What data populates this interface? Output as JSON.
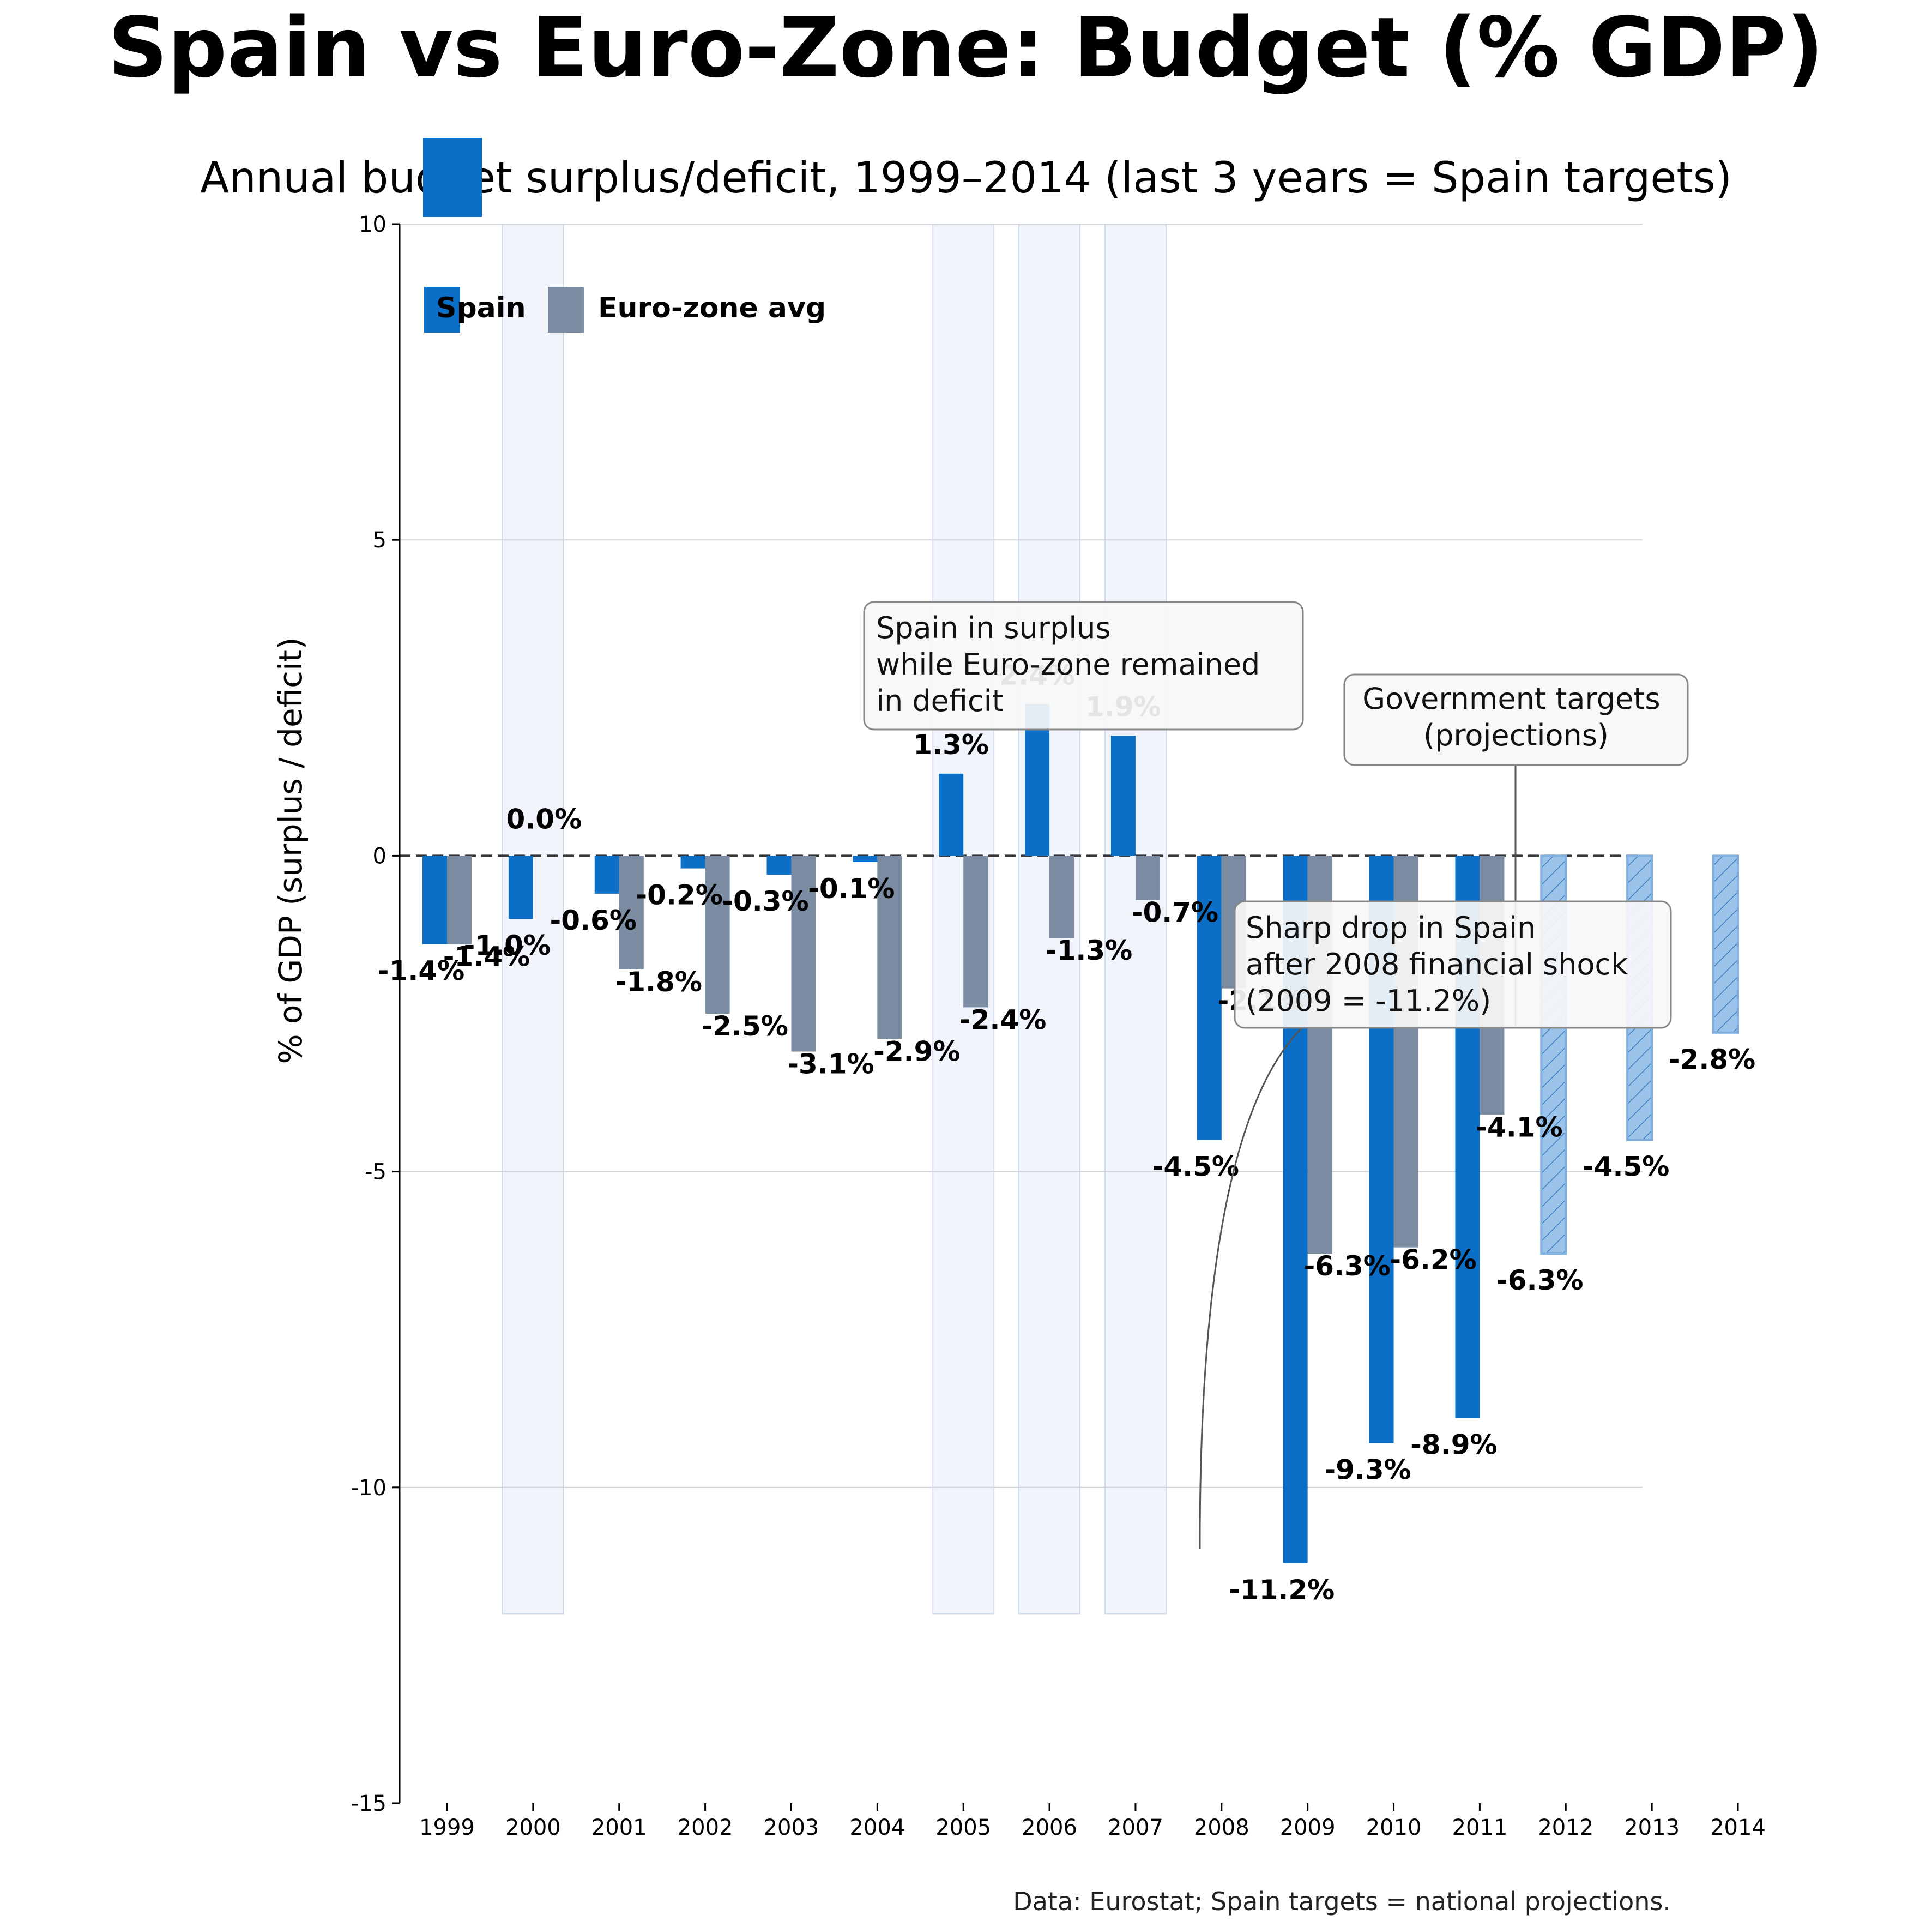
{
  "chart_data": {
    "type": "bar",
    "title": "Spain vs Euro-Zone: Budget (% GDP)",
    "subtitle": "Annual budget surplus/deficit, 1999–2014 (last 3 years = Spain targets)",
    "ylabel": "% of GDP (surplus / deficit)",
    "xlabel": "",
    "ylim": [
      -15,
      10
    ],
    "yticks": [
      -15,
      -10,
      -5,
      0,
      5,
      10
    ],
    "ytick_labels": [
      "-15",
      "-10",
      "-5",
      "0",
      "5",
      "10"
    ],
    "grid": "horizontal",
    "legend_position": "top-left",
    "categories": [
      "1999",
      "2000",
      "2001",
      "2002",
      "2003",
      "2004",
      "2005",
      "2006",
      "2007",
      "2008",
      "2009",
      "2010",
      "2011",
      "2012",
      "2013",
      "2014"
    ],
    "series": [
      {
        "name": "Spain",
        "color": "#0b6fc7",
        "target_color": "#9cc3ea",
        "target_start_index": 13,
        "values": [
          -1.4,
          -1.0,
          -0.6,
          -0.2,
          -0.3,
          -0.1,
          1.3,
          2.4,
          1.9,
          -4.5,
          -11.2,
          -9.3,
          -8.9,
          -6.3,
          -4.5,
          -2.8
        ],
        "labels": [
          "-1.4%",
          "-1.0%",
          "-0.6%",
          "-0.2%",
          "-0.3%",
          "-0.1%",
          "1.3%",
          "2.4%",
          "1.9%",
          "-4.5%",
          "-11.2%",
          "-9.3%",
          "-8.9%",
          "-6.3%",
          "-4.5%",
          "-2.8%"
        ]
      },
      {
        "name": "Euro-zone avg",
        "color": "#7b8ba1",
        "values": [
          -1.4,
          0.0,
          -1.8,
          -2.5,
          -3.1,
          -2.9,
          -2.4,
          -1.3,
          -0.7,
          -2.1,
          -6.3,
          -6.2,
          -4.1,
          null,
          null,
          null
        ],
        "labels": [
          "-1.4%",
          "0.0%",
          "-1.8%",
          "-2.5%",
          "-3.1%",
          "-2.9%",
          "-2.4%",
          "-1.3%",
          "-0.7%",
          "-2.1%",
          "-6.3%",
          "-6.2%",
          "-4.1%",
          null,
          null,
          null
        ]
      }
    ],
    "highlight_years": [
      "2000",
      "2005",
      "2006",
      "2007"
    ],
    "annotations": [
      {
        "text": [
          "Spain in surplus",
          "while Euro-zone remained",
          "in deficit"
        ]
      },
      {
        "text": [
          "Government targets",
          "(projections)"
        ],
        "points_to": "2013"
      },
      {
        "text": [
          "Sharp drop in Spain",
          "after 2008 financial shock",
          "(2009 = -11.2%)"
        ],
        "points_to": "2009"
      }
    ]
  },
  "source_note": "Data: Eurostat; Spain targets = national projections."
}
